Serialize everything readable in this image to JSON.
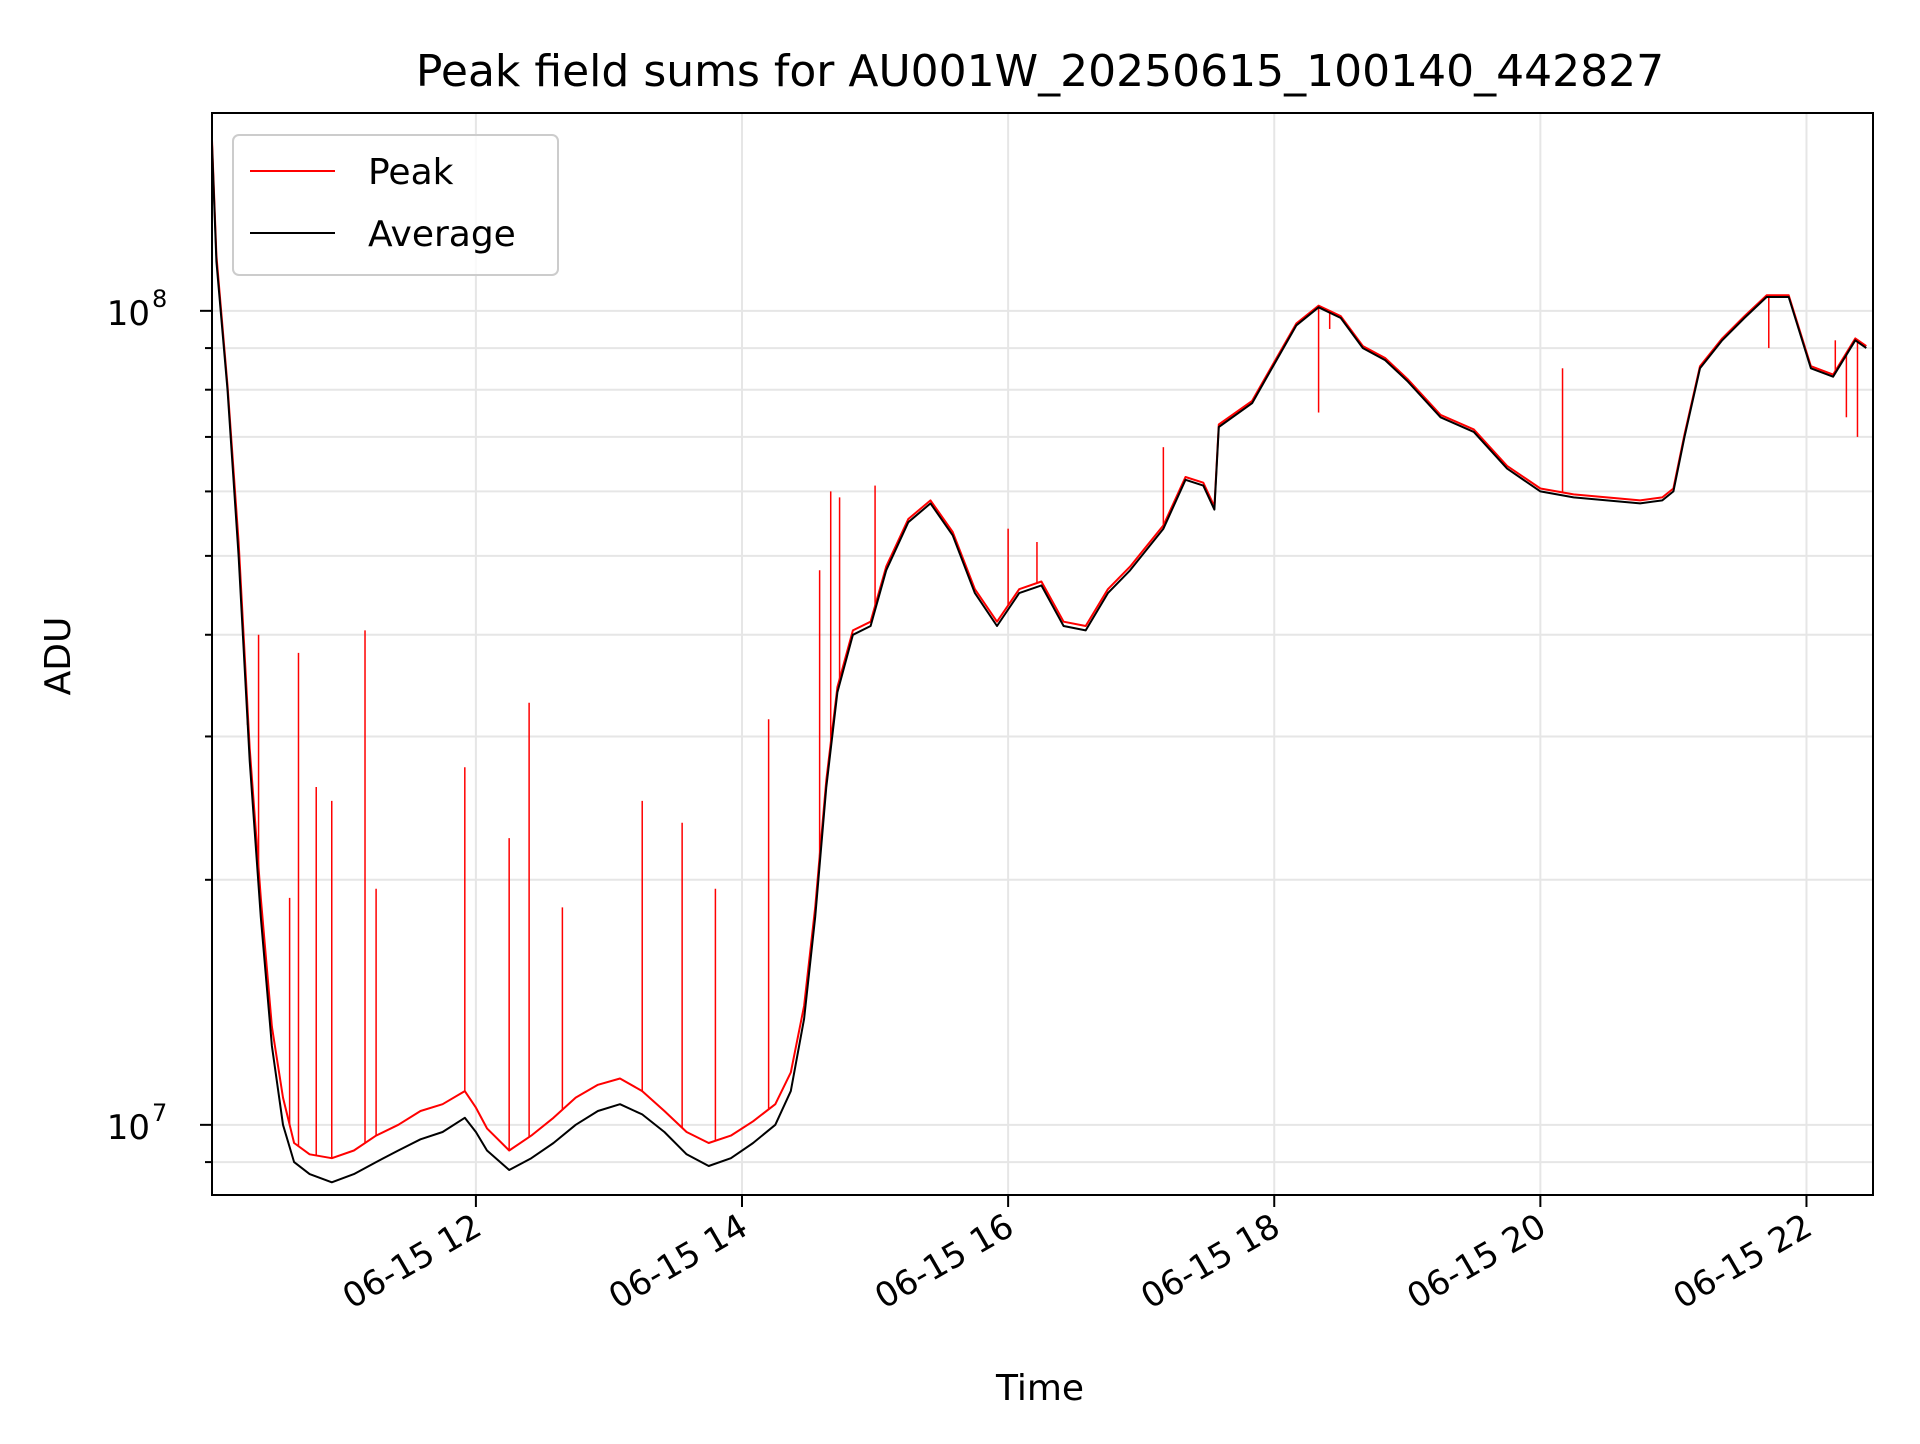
{
  "chart_data": {
    "type": "line",
    "title": "Peak field sums for AU001W_20250615_100140_442827",
    "xlabel": "Time",
    "ylabel": "ADU",
    "yscale": "log",
    "ylim": [
      8200000,
      175000000
    ],
    "xlim": [
      "2025-06-15 10:01",
      "2025-06-15 22:30"
    ],
    "grid": true,
    "legend_position": "top-left",
    "x_ticks": [
      {
        "value": "2025-06-15 12:00",
        "label": "06-15 12"
      },
      {
        "value": "2025-06-15 14:00",
        "label": "06-15 14"
      },
      {
        "value": "2025-06-15 16:00",
        "label": "06-15 16"
      },
      {
        "value": "2025-06-15 18:00",
        "label": "06-15 18"
      },
      {
        "value": "2025-06-15 20:00",
        "label": "06-15 20"
      },
      {
        "value": "2025-06-15 22:00",
        "label": "06-15 22"
      }
    ],
    "y_ticks": [
      {
        "value": 10000000,
        "base": "10",
        "exp": "7"
      },
      {
        "value": 100000000,
        "base": "10",
        "exp": "8"
      }
    ],
    "series": [
      {
        "name": "Average",
        "color": "#000000",
        "points": [
          [
            "2025-06-15 10:01",
            160000000
          ],
          [
            "2025-06-15 10:03",
            115000000
          ],
          [
            "2025-06-15 10:08",
            80000000
          ],
          [
            "2025-06-15 10:13",
            50000000
          ],
          [
            "2025-06-15 10:18",
            28000000
          ],
          [
            "2025-06-15 10:23",
            18000000
          ],
          [
            "2025-06-15 10:28",
            12500000
          ],
          [
            "2025-06-15 10:33",
            10000000
          ],
          [
            "2025-06-15 10:38",
            9000000
          ],
          [
            "2025-06-15 10:45",
            8700000
          ],
          [
            "2025-06-15 10:55",
            8500000
          ],
          [
            "2025-06-15 11:05",
            8700000
          ],
          [
            "2025-06-15 11:15",
            9000000
          ],
          [
            "2025-06-15 11:25",
            9300000
          ],
          [
            "2025-06-15 11:35",
            9600000
          ],
          [
            "2025-06-15 11:45",
            9800000
          ],
          [
            "2025-06-15 11:55",
            10200000
          ],
          [
            "2025-06-15 12:00",
            9800000
          ],
          [
            "2025-06-15 12:05",
            9300000
          ],
          [
            "2025-06-15 12:15",
            8800000
          ],
          [
            "2025-06-15 12:25",
            9100000
          ],
          [
            "2025-06-15 12:35",
            9500000
          ],
          [
            "2025-06-15 12:45",
            10000000
          ],
          [
            "2025-06-15 12:55",
            10400000
          ],
          [
            "2025-06-15 13:05",
            10600000
          ],
          [
            "2025-06-15 13:15",
            10300000
          ],
          [
            "2025-06-15 13:25",
            9800000
          ],
          [
            "2025-06-15 13:35",
            9200000
          ],
          [
            "2025-06-15 13:45",
            8900000
          ],
          [
            "2025-06-15 13:55",
            9100000
          ],
          [
            "2025-06-15 14:05",
            9500000
          ],
          [
            "2025-06-15 14:15",
            10000000
          ],
          [
            "2025-06-15 14:22",
            11000000
          ],
          [
            "2025-06-15 14:28",
            13500000
          ],
          [
            "2025-06-15 14:33",
            18000000
          ],
          [
            "2025-06-15 14:38",
            26000000
          ],
          [
            "2025-06-15 14:43",
            34000000
          ],
          [
            "2025-06-15 14:50",
            40000000
          ],
          [
            "2025-06-15 14:58",
            41000000
          ],
          [
            "2025-06-15 15:05",
            48000000
          ],
          [
            "2025-06-15 15:15",
            55000000
          ],
          [
            "2025-06-15 15:25",
            58000000
          ],
          [
            "2025-06-15 15:35",
            53000000
          ],
          [
            "2025-06-15 15:45",
            45000000
          ],
          [
            "2025-06-15 15:55",
            41000000
          ],
          [
            "2025-06-15 16:05",
            45000000
          ],
          [
            "2025-06-15 16:15",
            46000000
          ],
          [
            "2025-06-15 16:25",
            41000000
          ],
          [
            "2025-06-15 16:35",
            40500000
          ],
          [
            "2025-06-15 16:45",
            45000000
          ],
          [
            "2025-06-15 16:55",
            48000000
          ],
          [
            "2025-06-15 17:10",
            54000000
          ],
          [
            "2025-06-15 17:20",
            62000000
          ],
          [
            "2025-06-15 17:28",
            61000000
          ],
          [
            "2025-06-15 17:33",
            57000000
          ],
          [
            "2025-06-15 17:35",
            72000000
          ],
          [
            "2025-06-15 17:50",
            77000000
          ],
          [
            "2025-06-15 18:00",
            86000000
          ],
          [
            "2025-06-15 18:10",
            96000000
          ],
          [
            "2025-06-15 18:20",
            101000000
          ],
          [
            "2025-06-15 18:30",
            98000000
          ],
          [
            "2025-06-15 18:40",
            90000000
          ],
          [
            "2025-06-15 18:50",
            87000000
          ],
          [
            "2025-06-15 19:00",
            82000000
          ],
          [
            "2025-06-15 19:15",
            74000000
          ],
          [
            "2025-06-15 19:30",
            71000000
          ],
          [
            "2025-06-15 19:45",
            64000000
          ],
          [
            "2025-06-15 20:00",
            60000000
          ],
          [
            "2025-06-15 20:15",
            59000000
          ],
          [
            "2025-06-15 20:30",
            58500000
          ],
          [
            "2025-06-15 20:45",
            58000000
          ],
          [
            "2025-06-15 20:55",
            58500000
          ],
          [
            "2025-06-15 21:00",
            60000000
          ],
          [
            "2025-06-15 21:05",
            70000000
          ],
          [
            "2025-06-15 21:12",
            85000000
          ],
          [
            "2025-06-15 21:22",
            92000000
          ],
          [
            "2025-06-15 21:32",
            98000000
          ],
          [
            "2025-06-15 21:42",
            104000000
          ],
          [
            "2025-06-15 21:52",
            104000000
          ],
          [
            "2025-06-15 22:02",
            85000000
          ],
          [
            "2025-06-15 22:12",
            83000000
          ],
          [
            "2025-06-15 22:22",
            92000000
          ],
          [
            "2025-06-15 22:27",
            90000000
          ]
        ]
      },
      {
        "name": "Peak",
        "color": "#ff0000",
        "points": [
          [
            "2025-06-15 10:01",
            162000000
          ],
          [
            "2025-06-15 10:03",
            117000000
          ],
          [
            "2025-06-15 10:08",
            81000000
          ],
          [
            "2025-06-15 10:13",
            52000000
          ],
          [
            "2025-06-15 10:18",
            29000000
          ],
          [
            "2025-06-15 10:23",
            19000000
          ],
          [
            "2025-06-15 10:28",
            13200000
          ],
          [
            "2025-06-15 10:33",
            10800000
          ],
          [
            "2025-06-15 10:38",
            9500000
          ],
          [
            "2025-06-15 10:45",
            9200000
          ],
          [
            "2025-06-15 10:55",
            9100000
          ],
          [
            "2025-06-15 11:05",
            9300000
          ],
          [
            "2025-06-15 11:15",
            9700000
          ],
          [
            "2025-06-15 11:25",
            10000000
          ],
          [
            "2025-06-15 11:35",
            10400000
          ],
          [
            "2025-06-15 11:45",
            10600000
          ],
          [
            "2025-06-15 11:55",
            11000000
          ],
          [
            "2025-06-15 12:00",
            10500000
          ],
          [
            "2025-06-15 12:05",
            9900000
          ],
          [
            "2025-06-15 12:15",
            9300000
          ],
          [
            "2025-06-15 12:25",
            9700000
          ],
          [
            "2025-06-15 12:35",
            10200000
          ],
          [
            "2025-06-15 12:45",
            10800000
          ],
          [
            "2025-06-15 12:55",
            11200000
          ],
          [
            "2025-06-15 13:05",
            11400000
          ],
          [
            "2025-06-15 13:15",
            11000000
          ],
          [
            "2025-06-15 13:25",
            10400000
          ],
          [
            "2025-06-15 13:35",
            9800000
          ],
          [
            "2025-06-15 13:45",
            9500000
          ],
          [
            "2025-06-15 13:55",
            9700000
          ],
          [
            "2025-06-15 14:05",
            10100000
          ],
          [
            "2025-06-15 14:15",
            10600000
          ],
          [
            "2025-06-15 14:22",
            11600000
          ],
          [
            "2025-06-15 14:28",
            14000000
          ],
          [
            "2025-06-15 14:33",
            18500000
          ],
          [
            "2025-06-15 14:38",
            26500000
          ],
          [
            "2025-06-15 14:43",
            34500000
          ],
          [
            "2025-06-15 14:50",
            40500000
          ],
          [
            "2025-06-15 14:58",
            41500000
          ],
          [
            "2025-06-15 15:05",
            48500000
          ],
          [
            "2025-06-15 15:15",
            55500000
          ],
          [
            "2025-06-15 15:25",
            58500000
          ],
          [
            "2025-06-15 15:35",
            53500000
          ],
          [
            "2025-06-15 15:45",
            45500000
          ],
          [
            "2025-06-15 15:55",
            41500000
          ],
          [
            "2025-06-15 16:05",
            45500000
          ],
          [
            "2025-06-15 16:15",
            46500000
          ],
          [
            "2025-06-15 16:25",
            41500000
          ],
          [
            "2025-06-15 16:35",
            41000000
          ],
          [
            "2025-06-15 16:45",
            45500000
          ],
          [
            "2025-06-15 16:55",
            48500000
          ],
          [
            "2025-06-15 17:10",
            54500000
          ],
          [
            "2025-06-15 17:20",
            62500000
          ],
          [
            "2025-06-15 17:28",
            61500000
          ],
          [
            "2025-06-15 17:33",
            57500000
          ],
          [
            "2025-06-15 17:35",
            72500000
          ],
          [
            "2025-06-15 17:50",
            77500000
          ],
          [
            "2025-06-15 18:00",
            86500000
          ],
          [
            "2025-06-15 18:10",
            96500000
          ],
          [
            "2025-06-15 18:20",
            101500000
          ],
          [
            "2025-06-15 18:30",
            98500000
          ],
          [
            "2025-06-15 18:40",
            90500000
          ],
          [
            "2025-06-15 18:50",
            87500000
          ],
          [
            "2025-06-15 19:00",
            82500000
          ],
          [
            "2025-06-15 19:15",
            74500000
          ],
          [
            "2025-06-15 19:30",
            71500000
          ],
          [
            "2025-06-15 19:45",
            64500000
          ],
          [
            "2025-06-15 20:00",
            60500000
          ],
          [
            "2025-06-15 20:15",
            59500000
          ],
          [
            "2025-06-15 20:30",
            59000000
          ],
          [
            "2025-06-15 20:45",
            58500000
          ],
          [
            "2025-06-15 20:55",
            59000000
          ],
          [
            "2025-06-15 21:00",
            60500000
          ],
          [
            "2025-06-15 21:05",
            70500000
          ],
          [
            "2025-06-15 21:12",
            85500000
          ],
          [
            "2025-06-15 21:22",
            92500000
          ],
          [
            "2025-06-15 21:32",
            98500000
          ],
          [
            "2025-06-15 21:42",
            104500000
          ],
          [
            "2025-06-15 21:52",
            104500000
          ],
          [
            "2025-06-15 22:02",
            85500000
          ],
          [
            "2025-06-15 22:12",
            83500000
          ],
          [
            "2025-06-15 22:22",
            92500000
          ],
          [
            "2025-06-15 22:27",
            90500000
          ]
        ],
        "spikes": [
          [
            "2025-06-15 10:17",
            31000000
          ],
          [
            "2025-06-15 10:22",
            40000000
          ],
          [
            "2025-06-15 10:36",
            19000000
          ],
          [
            "2025-06-15 10:40",
            38000000
          ],
          [
            "2025-06-15 10:48",
            26000000
          ],
          [
            "2025-06-15 10:55",
            25000000
          ],
          [
            "2025-06-15 11:10",
            40500000
          ],
          [
            "2025-06-15 11:15",
            19500000
          ],
          [
            "2025-06-15 11:55",
            27500000
          ],
          [
            "2025-06-15 12:15",
            22500000
          ],
          [
            "2025-06-15 12:24",
            33000000
          ],
          [
            "2025-06-15 12:39",
            18500000
          ],
          [
            "2025-06-15 13:15",
            25000000
          ],
          [
            "2025-06-15 13:33",
            23500000
          ],
          [
            "2025-06-15 13:48",
            19500000
          ],
          [
            "2025-06-15 14:12",
            31500000
          ],
          [
            "2025-06-15 14:35",
            48000000
          ],
          [
            "2025-06-15 14:40",
            60000000
          ],
          [
            "2025-06-15 14:44",
            59000000
          ],
          [
            "2025-06-15 15:00",
            61000000
          ],
          [
            "2025-06-15 15:32",
            55000000
          ],
          [
            "2025-06-15 16:00",
            54000000
          ],
          [
            "2025-06-15 16:13",
            52000000
          ],
          [
            "2025-06-15 17:10",
            68000000
          ],
          [
            "2025-06-15 18:20",
            75000000
          ],
          [
            "2025-06-15 18:25",
            95000000
          ],
          [
            "2025-06-15 20:10",
            85000000
          ],
          [
            "2025-06-15 21:43",
            90000000
          ],
          [
            "2025-06-15 22:13",
            92000000
          ],
          [
            "2025-06-15 22:18",
            74000000
          ],
          [
            "2025-06-15 22:23",
            70000000
          ]
        ]
      }
    ]
  }
}
